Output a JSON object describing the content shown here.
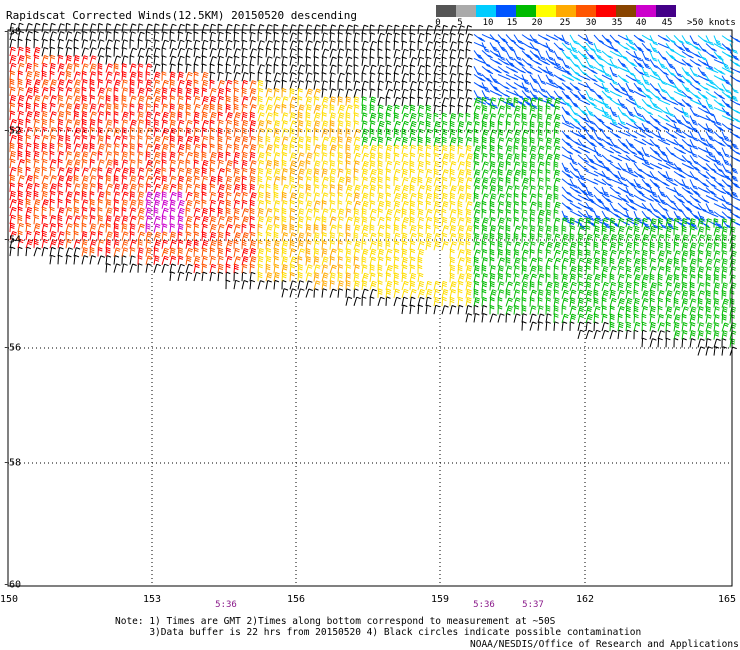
{
  "title": "Rapidscat Corrected Winds(12.5KM) 20150520 descending",
  "legend": {
    "labels": [
      "0",
      "5",
      "10",
      "15",
      "20",
      "25",
      "30",
      "35",
      "40",
      "45",
      ">50 knots"
    ],
    "colors": [
      "#555555",
      "#aaaaaa",
      "#00ccff",
      "#0055ff",
      "#00bb00",
      "#ffff00",
      "#ffaa00",
      "#ff5500",
      "#ff0000",
      "#884400",
      "#cc00cc",
      "#440088"
    ]
  },
  "axes": {
    "y_labels": [
      "-50",
      "-52",
      "-54",
      "-56",
      "-58",
      "-60"
    ],
    "x_labels": [
      "150",
      "153",
      "156",
      "159",
      "162",
      "165"
    ]
  },
  "times": [
    "5:36",
    "5:36",
    "5:37"
  ],
  "notes": [
    "Note: 1) Times are GMT 2)Times along bottom correspond to measurement at ~50S",
    "      3)Data buffer is 22 hrs from 20150520 4) Black circles indicate possible contamination"
  ],
  "credit": "NOAA/NESDIS/Office of Research and Applications"
}
